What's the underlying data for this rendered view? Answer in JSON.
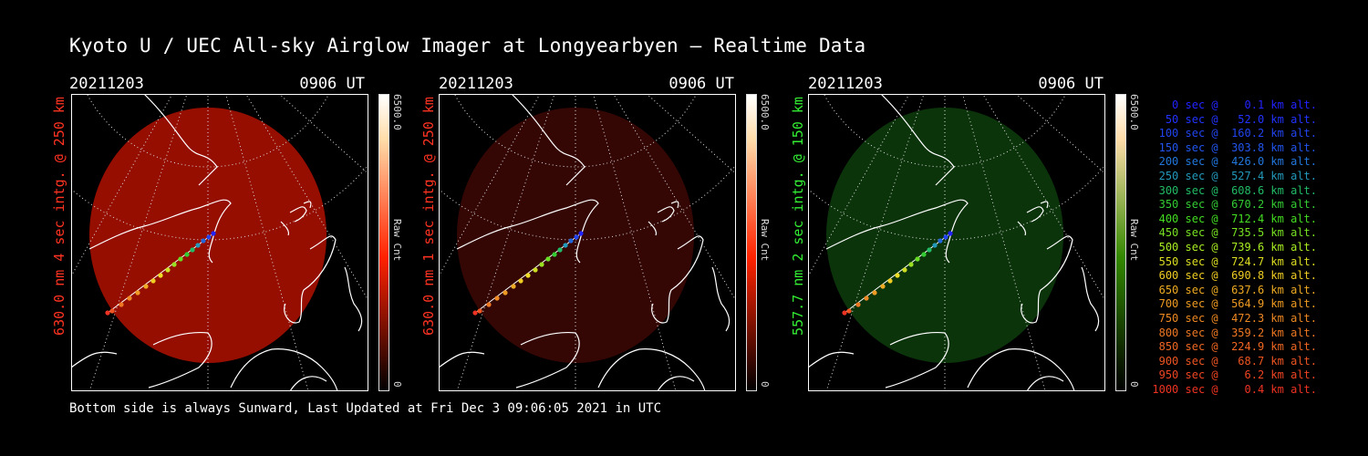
{
  "title": "Kyoto U / UEC All-sky Airglow Imager at Longyearbyen — Realtime Data",
  "footer": "Bottom side is always Sunward, Last Updated at Fri Dec  3 09:06:05 2021 in UTC",
  "colors": {
    "red": "#ff2a1a",
    "green": "#33ee33"
  },
  "panels": [
    {
      "date": "20211203",
      "time": "0906 UT",
      "label": "630.0 nm 4 sec intg. @ 250 km",
      "label_color": "#ff3322",
      "cbar_max": "6500.0",
      "cbar_min": "0",
      "cbar_unit": "Raw Cnt",
      "cbar_color": "#ff2200",
      "glow": "#b01000",
      "glow_opacity": 0.85
    },
    {
      "date": "20211203",
      "time": "0906 UT",
      "label": "630.0 nm 1 sec intg. @ 250 km",
      "label_color": "#ff3322",
      "cbar_max": "6500.0",
      "cbar_min": "0",
      "cbar_unit": "Raw Cnt",
      "cbar_color": "#ff2200",
      "glow": "#3a0805",
      "glow_opacity": 0.9
    },
    {
      "date": "20211203",
      "time": "0906 UT",
      "label": "557.7 nm 2 sec intg. @ 150 km",
      "label_color": "#33ee33",
      "cbar_max": "6500.0",
      "cbar_min": "0",
      "cbar_unit": "Raw Cnt",
      "cbar_color": "#338800",
      "glow": "#0c3a0c",
      "glow_opacity": 0.9
    }
  ],
  "legend": [
    {
      "text": "   0 sec @    0.1 km alt.",
      "color": "#2222ff"
    },
    {
      "text": "  50 sec @   52.0 km alt.",
      "color": "#2233ff"
    },
    {
      "text": " 100 sec @  160.2 km alt.",
      "color": "#2244ee"
    },
    {
      "text": " 150 sec @  303.8 km alt.",
      "color": "#2255ee"
    },
    {
      "text": " 200 sec @  426.0 km alt.",
      "color": "#2277dd"
    },
    {
      "text": " 250 sec @  527.4 km alt.",
      "color": "#2299bb"
    },
    {
      "text": " 300 sec @  608.6 km alt.",
      "color": "#22bb66"
    },
    {
      "text": " 350 sec @  670.2 km alt.",
      "color": "#33cc33"
    },
    {
      "text": " 400 sec @  712.4 km alt.",
      "color": "#44dd22"
    },
    {
      "text": " 450 sec @  735.5 km alt.",
      "color": "#77e022"
    },
    {
      "text": " 500 sec @  739.6 km alt.",
      "color": "#aaee22"
    },
    {
      "text": " 550 sec @  724.7 km alt.",
      "color": "#dddd22"
    },
    {
      "text": " 600 sec @  690.8 km alt.",
      "color": "#eecc22"
    },
    {
      "text": " 650 sec @  637.6 km alt.",
      "color": "#eeaa22"
    },
    {
      "text": " 700 sec @  564.9 km alt.",
      "color": "#ee9922"
    },
    {
      "text": " 750 sec @  472.3 km alt.",
      "color": "#ee8822"
    },
    {
      "text": " 800 sec @  359.2 km alt.",
      "color": "#ee7722"
    },
    {
      "text": " 850 sec @  224.9 km alt.",
      "color": "#ee6622"
    },
    {
      "text": " 900 sec @   68.7 km alt.",
      "color": "#ee5522"
    },
    {
      "text": " 950 sec @    6.2 km alt.",
      "color": "#ee4422"
    },
    {
      "text": "1000 sec @    0.4 km alt.",
      "color": "#ee3322"
    }
  ]
}
